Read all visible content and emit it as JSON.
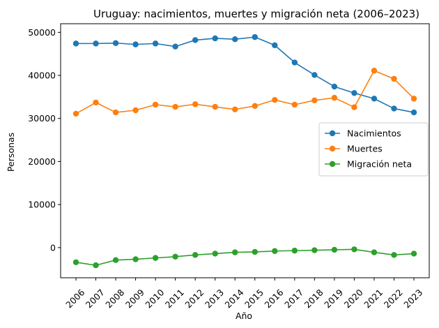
{
  "chart_data": {
    "type": "line",
    "title": "Uruguay: nacimientos, muertes y migración neta (2006–2023)",
    "xlabel": "Año",
    "ylabel": "Personas",
    "x": [
      "2006",
      "2007",
      "2008",
      "2009",
      "2010",
      "2011",
      "2012",
      "2013",
      "2014",
      "2015",
      "2016",
      "2017",
      "2018",
      "2019",
      "2020",
      "2021",
      "2022",
      "2023"
    ],
    "ylim": [
      -7000,
      52000
    ],
    "yticks": [
      0,
      10000,
      20000,
      30000,
      40000,
      50000
    ],
    "grid": false,
    "legend_position": "center-right",
    "series": [
      {
        "name": "Nacimientos",
        "color": "#1f77b4",
        "values": [
          47400,
          47400,
          47500,
          47200,
          47400,
          46700,
          48200,
          48600,
          48400,
          48900,
          47000,
          43000,
          40100,
          37400,
          35900,
          34600,
          32300,
          31400
        ]
      },
      {
        "name": "Muertes",
        "color": "#ff7f0e",
        "values": [
          31100,
          33700,
          31400,
          31900,
          33200,
          32700,
          33300,
          32700,
          32100,
          32900,
          34300,
          33200,
          34200,
          34800,
          32600,
          41100,
          39200,
          34600
        ]
      },
      {
        "name": "Migración neta",
        "color": "#2ca02c",
        "values": [
          -3400,
          -4100,
          -2900,
          -2700,
          -2400,
          -2100,
          -1700,
          -1400,
          -1100,
          -1000,
          -800,
          -700,
          -600,
          -500,
          -400,
          -1100,
          -1700,
          -1400
        ]
      }
    ]
  }
}
